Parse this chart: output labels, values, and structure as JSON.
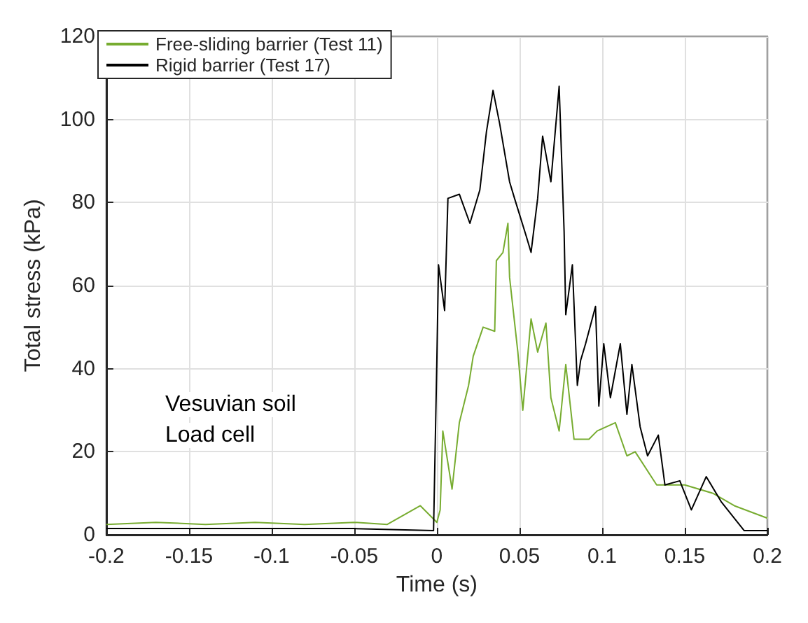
{
  "chart_data": {
    "type": "line",
    "xlabel": "Time (s)",
    "ylabel": "Total stress (kPa)",
    "xlim": [
      -0.2,
      0.2
    ],
    "xticks": [
      -0.2,
      -0.15,
      -0.1,
      -0.05,
      0,
      0.05,
      0.1,
      0.15,
      0.2
    ],
    "ylim": [
      0,
      120
    ],
    "yticks": [
      0,
      20,
      40,
      60,
      80,
      100,
      120
    ],
    "grid": true,
    "legend": "top left",
    "line_style": "solid",
    "marker": "none",
    "annotations": [
      "Vesuvian soil",
      "Load cell"
    ],
    "series": [
      {
        "name": "Free-sliding barrier (Test 11)",
        "color": "#77ac30",
        "x": [
          -0.2,
          -0.17,
          -0.14,
          -0.11,
          -0.08,
          -0.05,
          -0.03,
          -0.01,
          0.0,
          0.002,
          0.0036,
          0.0092,
          0.0136,
          0.0192,
          0.022,
          0.028,
          0.035,
          0.036,
          0.04,
          0.043,
          0.044,
          0.049,
          0.052,
          0.057,
          0.061,
          0.066,
          0.069,
          0.074,
          0.078,
          0.083,
          0.092,
          0.097,
          0.108,
          0.115,
          0.12,
          0.133,
          0.15,
          0.167,
          0.18,
          0.2
        ],
        "values": [
          2.5,
          3,
          2.5,
          3,
          2.5,
          3,
          2.5,
          7,
          3,
          6,
          25,
          11,
          27,
          36,
          43,
          50,
          49,
          66,
          68,
          75,
          62,
          44,
          30,
          52,
          44,
          51,
          33,
          25,
          41,
          23,
          23,
          25,
          27,
          19,
          20,
          12,
          12,
          10,
          7,
          4
        ]
      },
      {
        "name": "Rigid barrier (Test 17)",
        "color": "#000000",
        "x": [
          -0.2,
          -0.15,
          -0.1,
          -0.05,
          -0.002,
          0.0,
          0.001,
          0.0047,
          0.0067,
          0.0136,
          0.02,
          0.026,
          0.03,
          0.034,
          0.038,
          0.044,
          0.047,
          0.054,
          0.057,
          0.061,
          0.064,
          0.069,
          0.074,
          0.077,
          0.078,
          0.082,
          0.085,
          0.087,
          0.09,
          0.096,
          0.098,
          0.101,
          0.105,
          0.111,
          0.115,
          0.118,
          0.123,
          0.1275,
          0.134,
          0.138,
          0.147,
          0.154,
          0.163,
          0.172,
          0.18,
          0.186,
          0.2
        ],
        "values": [
          1.5,
          1.5,
          1.5,
          1.5,
          1,
          42,
          65,
          54,
          81,
          82,
          75,
          83,
          97,
          107,
          99,
          85,
          81,
          72,
          68,
          81,
          96,
          85,
          108,
          73,
          53,
          65,
          36,
          42,
          46,
          55,
          31,
          46,
          33,
          46,
          29,
          41,
          26,
          19,
          24,
          12,
          13,
          6,
          14,
          8,
          4,
          1,
          1
        ]
      }
    ]
  }
}
